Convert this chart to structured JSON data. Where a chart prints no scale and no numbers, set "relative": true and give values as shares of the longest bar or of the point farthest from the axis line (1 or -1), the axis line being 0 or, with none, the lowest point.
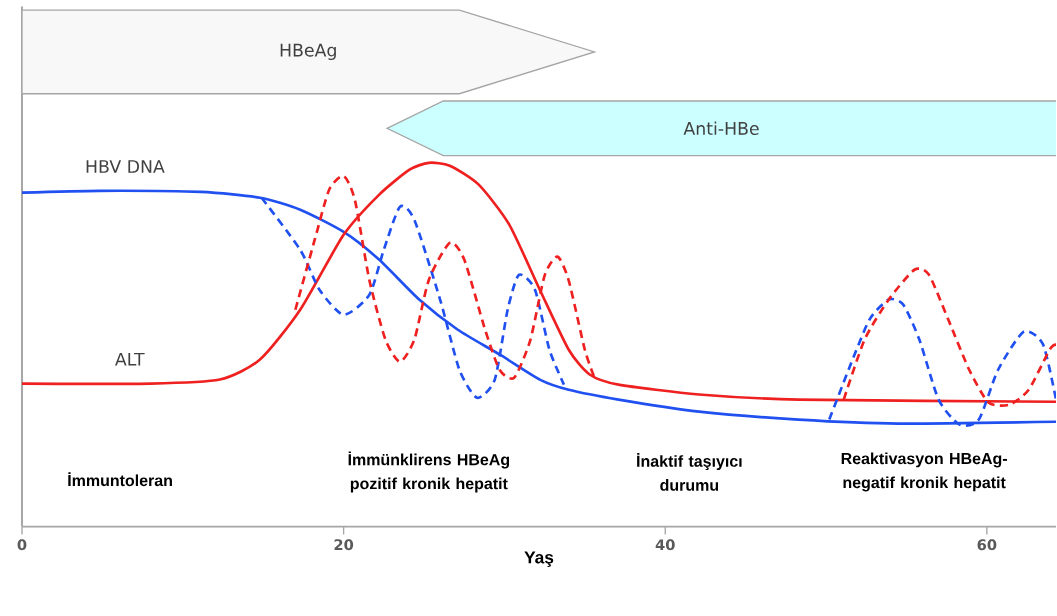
{
  "chart_data": {
    "type": "line",
    "relative": true,
    "xlabel": "Yaş",
    "xlim": [
      0,
      64.3
    ],
    "xticks": [
      0,
      20,
      40,
      60
    ],
    "grid": false,
    "series": [
      {
        "name": "HBV DNA",
        "color": "#2050f0",
        "line_style": "solid",
        "x": [
          0,
          4.8,
          11.1,
          14.8,
          17.3,
          20,
          22.2,
          24.7,
          27.1,
          29.7,
          32.2,
          34,
          37.1,
          42.1,
          48.3,
          54.5,
          64.3
        ],
        "values": [
          0.918,
          0.923,
          0.92,
          0.904,
          0.871,
          0.81,
          0.734,
          0.624,
          0.541,
          0.473,
          0.404,
          0.376,
          0.349,
          0.316,
          0.294,
          0.283,
          0.288
        ]
      },
      {
        "name": "ALT",
        "color": "#ee2020",
        "line_style": "solid",
        "x": [
          0,
          8,
          12.3,
          14.8,
          17.3,
          20,
          22.2,
          24.1,
          25.3,
          26.6,
          28.4,
          30.3,
          32.2,
          34,
          35.3,
          37.1,
          42.1,
          48.3,
          64.3
        ],
        "values": [
          0.393,
          0.393,
          0.404,
          0.459,
          0.596,
          0.802,
          0.912,
          0.981,
          1.0,
          0.992,
          0.94,
          0.83,
          0.651,
          0.486,
          0.418,
          0.39,
          0.363,
          0.349,
          0.343
        ]
      },
      {
        "color": "#2050f0",
        "line_style": "dashed",
        "x": [
          14.9,
          17.3,
          18.5,
          20,
          21.6,
          22.5,
          23.5,
          24.4,
          26,
          27.2,
          28.3,
          29.4,
          30.2,
          30.9,
          31.9,
          32.8,
          33.7,
          42,
          50.2,
          51.4,
          52.7,
          53.9,
          54.8,
          55.8,
          57.0,
          58.3,
          59.5,
          60.7,
          62.3,
          63.5,
          64.3
        ],
        "values": [
          0.904,
          0.761,
          0.651,
          0.582,
          0.637,
          0.761,
          0.879,
          0.843,
          0.624,
          0.431,
          0.354,
          0.404,
          0.596,
          0.692,
          0.651,
          0.486,
          0.39,
          null,
          0.294,
          0.431,
          0.569,
          0.624,
          0.61,
          0.514,
          0.349,
          0.28,
          0.294,
          0.431,
          0.536,
          0.5,
          0.349
        ]
      },
      {
        "color": "#ee2020",
        "line_style": "dashed",
        "x": [
          17.0,
          18.2,
          19.1,
          20.0,
          20.7,
          21.6,
          22.6,
          23.5,
          24.4,
          25.3,
          26.6,
          27.5,
          28.8,
          29.7,
          30.6,
          31.6,
          32.5,
          33.3,
          34.0,
          35.0,
          35.6,
          42,
          51.1,
          52.4,
          53.9,
          55.5,
          56.4,
          57.6,
          58.9,
          60.1,
          61.4,
          62.6,
          63.9,
          64.3
        ],
        "values": [
          0.596,
          0.788,
          0.926,
          0.964,
          0.898,
          0.678,
          0.514,
          0.453,
          0.514,
          0.678,
          0.78,
          0.734,
          0.541,
          0.431,
          0.409,
          0.511,
          0.69,
          0.742,
          0.676,
          0.486,
          0.409,
          null,
          0.349,
          0.514,
          0.624,
          0.706,
          0.692,
          0.569,
          0.431,
          0.341,
          0.335,
          0.376,
          0.486,
          0.5
        ]
      }
    ],
    "annotations": [
      "HBeAg",
      "Anti-HBe",
      "İmmuntoleran",
      "İmmünklirens HBeAg pozitif kronik hepatit",
      "İnaktif taşıyıcı durumu",
      "Reaktivasyon HBeAg-negatif kronik hepatit"
    ]
  }
}
